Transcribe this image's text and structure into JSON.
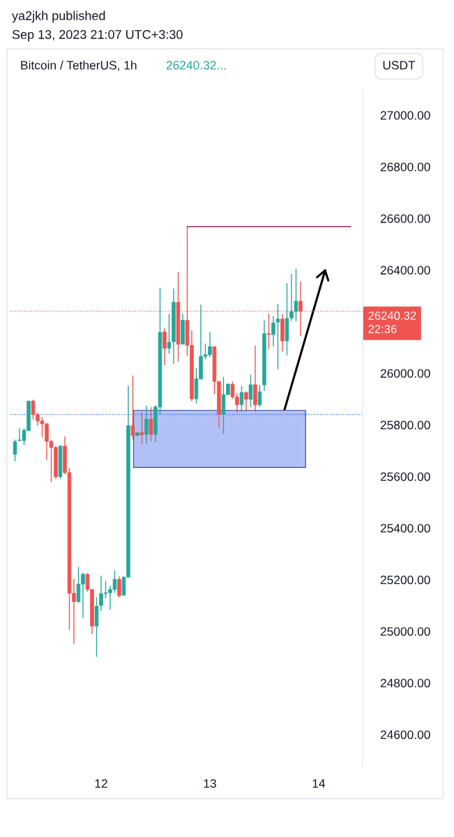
{
  "chart_data": {
    "type": "candlestick",
    "title": "Bitcoin / TetherUS, 1h",
    "subtitle": "26240.32...",
    "ylabel": "USDT",
    "annotations": [
      "ya2jkh published",
      "Sep 13, 2023 21:07 UTC+3:30",
      "22:36"
    ],
    "x": [
      "2023-09-11T05:00",
      "2023-09-11T06:00",
      "2023-09-11T07:00",
      "2023-09-11T08:00",
      "2023-09-11T09:00",
      "2023-09-11T10:00",
      "2023-09-11T11:00",
      "2023-09-11T12:00",
      "2023-09-11T13:00",
      "2023-09-11T14:00",
      "2023-09-11T15:00",
      "2023-09-11T16:00",
      "2023-09-11T17:00",
      "2023-09-11T18:00",
      "2023-09-11T19:00",
      "2023-09-11T20:00",
      "2023-09-11T21:00",
      "2023-09-11T22:00",
      "2023-09-11T23:00",
      "2023-09-12T00:00",
      "2023-09-12T01:00",
      "2023-09-12T02:00",
      "2023-09-12T03:00",
      "2023-09-12T04:00",
      "2023-09-12T05:00",
      "2023-09-12T06:00",
      "2023-09-12T07:00",
      "2023-09-12T08:00",
      "2023-09-12T09:00",
      "2023-09-12T10:00",
      "2023-09-12T11:00",
      "2023-09-12T12:00",
      "2023-09-12T13:00",
      "2023-09-12T14:00",
      "2023-09-12T15:00",
      "2023-09-12T16:00",
      "2023-09-12T17:00",
      "2023-09-12T18:00",
      "2023-09-12T19:00",
      "2023-09-12T20:00",
      "2023-09-12T21:00",
      "2023-09-12T22:00",
      "2023-09-12T23:00",
      "2023-09-13T00:00",
      "2023-09-13T01:00",
      "2023-09-13T02:00",
      "2023-09-13T03:00",
      "2023-09-13T04:00",
      "2023-09-13T05:00",
      "2023-09-13T06:00",
      "2023-09-13T07:00",
      "2023-09-13T08:00",
      "2023-09-13T09:00",
      "2023-09-13T10:00",
      "2023-09-13T11:00",
      "2023-09-13T12:00",
      "2023-09-13T13:00",
      "2023-09-13T14:00",
      "2023-09-13T15:00",
      "2023-09-13T16:00",
      "2023-09-13T17:00",
      "2023-09-13T18:00",
      "2023-09-13T19:00",
      "2023-09-13T20:00"
    ],
    "ohlc": [
      [
        25686,
        25743,
        25659,
        25735
      ],
      [
        25739,
        25787,
        25737,
        25741
      ],
      [
        25739,
        25786,
        25722,
        25779
      ],
      [
        25778,
        25892,
        25778,
        25892
      ],
      [
        25892,
        25898,
        25820,
        25840
      ],
      [
        25840,
        25847,
        25797,
        25815
      ],
      [
        25815,
        25830,
        25752,
        25804
      ],
      [
        25804,
        25807,
        25664,
        25736
      ],
      [
        25736,
        25741,
        25578,
        25712
      ],
      [
        25712,
        25718,
        25590,
        25599
      ],
      [
        25599,
        25718,
        25590,
        25718
      ],
      [
        25718,
        25754,
        25608,
        25615
      ],
      [
        25615,
        25633,
        25005,
        25147
      ],
      [
        25147,
        25203,
        24951,
        25115
      ],
      [
        25115,
        25249,
        25110,
        25183
      ],
      [
        25183,
        25227,
        25051,
        25221
      ],
      [
        25221,
        25226,
        25153,
        25162
      ],
      [
        25162,
        25162,
        24989,
        25020
      ],
      [
        25020,
        25132,
        24901,
        25097
      ],
      [
        25100,
        25216,
        25078,
        25146
      ],
      [
        25146,
        25195,
        25128,
        25149
      ],
      [
        25149,
        25176,
        25084,
        25162
      ],
      [
        25162,
        25236,
        25149,
        25201
      ],
      [
        25201,
        25212,
        25132,
        25138
      ],
      [
        25140,
        25213,
        25138,
        25209
      ],
      [
        25209,
        25951,
        25209,
        25797
      ],
      [
        25797,
        25991,
        25743,
        25759
      ],
      [
        25759,
        25770,
        25757,
        25770
      ],
      [
        25770,
        25850,
        25725,
        25761
      ],
      [
        25763,
        25874,
        25725,
        25822
      ],
      [
        25822,
        25869,
        25737,
        25763
      ],
      [
        25763,
        25875,
        25734,
        25869
      ],
      [
        25869,
        26331,
        25842,
        26158
      ],
      [
        26160,
        26176,
        26032,
        26097
      ],
      [
        26097,
        26230,
        26076,
        26120
      ],
      [
        26122,
        26329,
        26036,
        26275
      ],
      [
        26275,
        26392,
        26045,
        26113
      ],
      [
        26113,
        26230,
        26113,
        26205
      ],
      [
        26205,
        26568,
        26068,
        26108
      ],
      [
        26108,
        26165,
        25892,
        25901
      ],
      [
        25901,
        26021,
        25883,
        25978
      ],
      [
        25978,
        26266,
        25978,
        26065
      ],
      [
        26065,
        26115,
        26054,
        26072
      ],
      [
        26072,
        26159,
        26063,
        26103
      ],
      [
        26103,
        26103,
        25919,
        25968
      ],
      [
        25968,
        25968,
        25788,
        25841
      ],
      [
        25841,
        25986,
        25766,
        25917
      ],
      [
        25917,
        25960,
        25915,
        25958
      ],
      [
        25957,
        25968,
        25901,
        25908
      ],
      [
        25908,
        25923,
        25847,
        25878
      ],
      [
        25878,
        25950,
        25851,
        25925
      ],
      [
        25925,
        25930,
        25851,
        25899
      ],
      [
        25899,
        25994,
        25869,
        25955
      ],
      [
        25955,
        26108,
        25851,
        25878
      ],
      [
        25878,
        25955,
        25869,
        25928
      ],
      [
        25955,
        26205,
        25931,
        26153
      ],
      [
        26153,
        26232,
        26095,
        26150
      ],
      [
        26150,
        26222,
        26104,
        26195
      ],
      [
        26198,
        26268,
        26015,
        26210
      ],
      [
        26210,
        26230,
        26084,
        26125
      ],
      [
        26125,
        26349,
        26069,
        26212
      ],
      [
        26214,
        26385,
        26203,
        26239
      ],
      [
        26239,
        26405,
        26201,
        26279
      ],
      [
        26279,
        26356,
        26144,
        26240.32
      ]
    ],
    "colors": [
      "#26a69a",
      "#26a69a",
      "#26a69a",
      "#26a69a",
      "#ef5350",
      "#ef5350",
      "#ef5350",
      "#ef5350",
      "#ef5350",
      "#ef5350",
      "#26a69a",
      "#ef5350",
      "#ef5350",
      "#ef5350",
      "#26a69a",
      "#26a69a",
      "#ef5350",
      "#ef5350",
      "#26a69a",
      "#26a69a",
      "#26a69a",
      "#26a69a",
      "#26a69a",
      "#ef5350",
      "#26a69a",
      "#26a69a",
      "#ef5350",
      "#26a69a",
      "#ef5350",
      "#26a69a",
      "#ef5350",
      "#26a69a",
      "#26a69a",
      "#ef5350",
      "#26a69a",
      "#26a69a",
      "#ef5350",
      "#26a69a",
      "#ef5350",
      "#ef5350",
      "#26a69a",
      "#26a69a",
      "#26a69a",
      "#26a69a",
      "#ef5350",
      "#ef5350",
      "#26a69a",
      "#26a69a",
      "#ef5350",
      "#ef5350",
      "#26a69a",
      "#ef5350",
      "#26a69a",
      "#ef5350",
      "#26a69a",
      "#26a69a",
      "#ef5350",
      "#26a69a",
      "#26a69a",
      "#ef5350",
      "#26a69a",
      "#26a69a",
      "#26a69a",
      "#ef5350"
    ],
    "series": [
      {
        "type": "line",
        "x": [
          "2023-09-12T19:00",
          "2023-09-14T07:00"
        ],
        "values": [
          26568,
          26568
        ],
        "color": "#a0417e"
      }
    ],
    "ref_lines": [
      {
        "axis": "y",
        "value": 26240.32,
        "label": "26240.32",
        "color": "#ef5350",
        "line_style": "dotted"
      },
      {
        "axis": "y",
        "value": 25840,
        "color": "#2962ff",
        "line_style": "dotted"
      }
    ],
    "xlim": [
      "2023-09-11T04:00",
      "2023-09-14T09:42"
    ],
    "xticks": [
      {
        "value": "2023-09-12",
        "label": "12"
      },
      {
        "value": "2023-09-13",
        "label": "13"
      },
      {
        "value": "2023-09-14",
        "label": "14"
      }
    ],
    "ylim": [
      24473,
      27095
    ],
    "yticks": [
      {
        "value": 24600,
        "label": "24600.00"
      },
      {
        "value": 24800,
        "label": "24800.00"
      },
      {
        "value": 25000,
        "label": "25000.00"
      },
      {
        "value": 25200,
        "label": "25200.00"
      },
      {
        "value": 25400,
        "label": "25400.00"
      },
      {
        "value": 25600,
        "label": "25600.00"
      },
      {
        "value": 25800,
        "label": "25800.00"
      },
      {
        "value": 26000,
        "label": "26000.00"
      },
      {
        "value": 26400,
        "label": "26400.00"
      },
      {
        "value": 26600,
        "label": "26600.00"
      },
      {
        "value": 26800,
        "label": "26800.00"
      },
      {
        "value": 27000,
        "label": "27000.00"
      }
    ],
    "grid": false,
    "legend": false
  }
}
